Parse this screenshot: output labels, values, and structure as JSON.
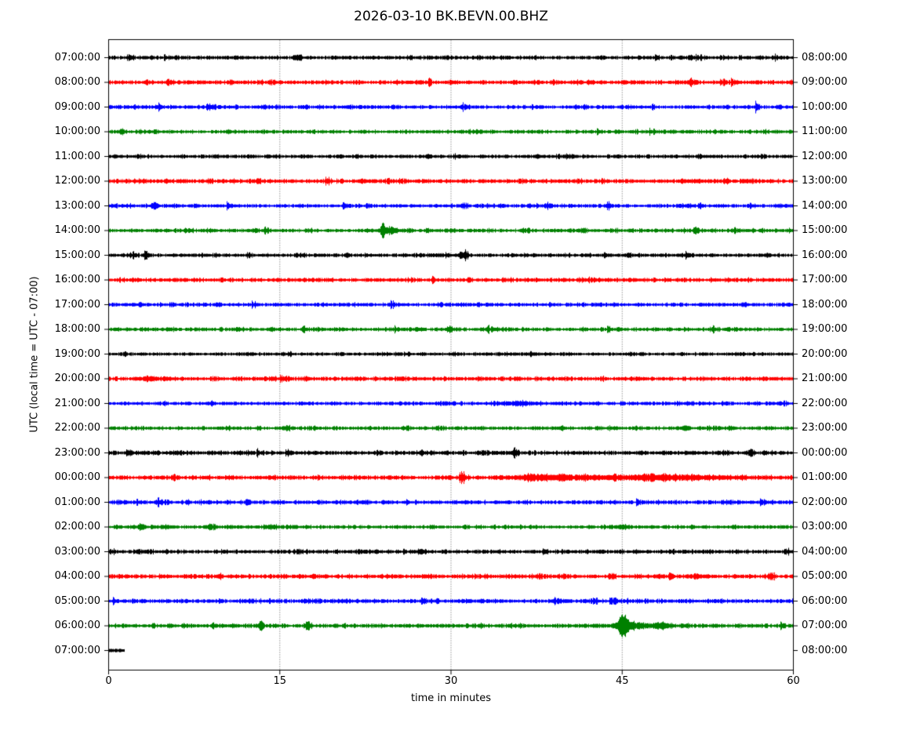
{
  "title": "2026-03-10 BK.BEVN.00.BHZ",
  "chart_data": {
    "type": "line",
    "subtype": "seismogram-helicorder-dayplot",
    "title": "2026-03-10 BK.BEVN.00.BHZ",
    "xlabel": "time in minutes",
    "ylabel": "UTC (local time = UTC - 07:00)",
    "xlim": [
      0,
      60
    ],
    "x_ticks": [
      0,
      15,
      30,
      45,
      60
    ],
    "grid": {
      "style": "dotted-vertical",
      "at_minutes": [
        15,
        30,
        45
      ]
    },
    "legend": "none",
    "colors_cycle": [
      "#000000",
      "#ff0000",
      "#0000ff",
      "#008000"
    ],
    "minutes_per_row": 60,
    "rows": [
      {
        "left": "07:00:00",
        "right": "08:00:00",
        "color": "#000000",
        "amp": 1.0,
        "events": []
      },
      {
        "left": "08:00:00",
        "right": "09:00:00",
        "color": "#ff0000",
        "amp": 1.1,
        "events": []
      },
      {
        "left": "09:00:00",
        "right": "10:00:00",
        "color": "#0000ff",
        "amp": 1.0,
        "events": []
      },
      {
        "left": "10:00:00",
        "right": "11:00:00",
        "color": "#008000",
        "amp": 1.0,
        "events": []
      },
      {
        "left": "11:00:00",
        "right": "12:00:00",
        "color": "#000000",
        "amp": 1.0,
        "events": []
      },
      {
        "left": "12:00:00",
        "right": "13:00:00",
        "color": "#ff0000",
        "amp": 1.15,
        "events": []
      },
      {
        "left": "13:00:00",
        "right": "14:00:00",
        "color": "#0000ff",
        "amp": 1.0,
        "events": [
          {
            "m": 4,
            "a": 2.5,
            "w": 0.25
          }
        ]
      },
      {
        "left": "14:00:00",
        "right": "15:00:00",
        "color": "#008000",
        "amp": 1.0,
        "events": [
          {
            "m": 24,
            "a": 7.5,
            "w": 0.12
          },
          {
            "m": 24.5,
            "a": 1.5,
            "w": 0.7
          }
        ]
      },
      {
        "left": "15:00:00",
        "right": "16:00:00",
        "color": "#000000",
        "amp": 1.0,
        "events": []
      },
      {
        "left": "16:00:00",
        "right": "17:00:00",
        "color": "#ff0000",
        "amp": 1.1,
        "events": []
      },
      {
        "left": "17:00:00",
        "right": "18:00:00",
        "color": "#0000ff",
        "amp": 1.0,
        "events": []
      },
      {
        "left": "18:00:00",
        "right": "19:00:00",
        "color": "#008000",
        "amp": 1.0,
        "events": []
      },
      {
        "left": "19:00:00",
        "right": "20:00:00",
        "color": "#000000",
        "amp": 0.9,
        "events": []
      },
      {
        "left": "20:00:00",
        "right": "21:00:00",
        "color": "#ff0000",
        "amp": 1.1,
        "events": [
          {
            "m": 3.5,
            "a": 1.5,
            "w": 0.5
          }
        ]
      },
      {
        "left": "21:00:00",
        "right": "22:00:00",
        "color": "#0000ff",
        "amp": 1.0,
        "events": [
          {
            "m": 36,
            "a": 1.2,
            "w": 0.8
          }
        ]
      },
      {
        "left": "22:00:00",
        "right": "23:00:00",
        "color": "#008000",
        "amp": 1.0,
        "events": [
          {
            "m": 50.5,
            "a": 1.8,
            "w": 0.25
          }
        ]
      },
      {
        "left": "23:00:00",
        "right": "00:00:00",
        "color": "#000000",
        "amp": 1.15,
        "events": []
      },
      {
        "left": "00:00:00",
        "right": "01:00:00",
        "color": "#ff0000",
        "amp": 1.1,
        "events": [
          {
            "m": 38,
            "a": 1.2,
            "w": 2
          },
          {
            "m": 47,
            "a": 1.5,
            "w": 6
          }
        ]
      },
      {
        "left": "01:00:00",
        "right": "02:00:00",
        "color": "#0000ff",
        "amp": 1.05,
        "events": []
      },
      {
        "left": "02:00:00",
        "right": "03:00:00",
        "color": "#008000",
        "amp": 1.0,
        "events": [
          {
            "m": 5,
            "a": 1.2,
            "w": 0.4
          },
          {
            "m": 14,
            "a": 1.2,
            "w": 0.4
          },
          {
            "m": 45,
            "a": 1.4,
            "w": 0.4
          }
        ]
      },
      {
        "left": "03:00:00",
        "right": "04:00:00",
        "color": "#000000",
        "amp": 1.05,
        "events": []
      },
      {
        "left": "04:00:00",
        "right": "05:00:00",
        "color": "#ff0000",
        "amp": 1.15,
        "events": []
      },
      {
        "left": "05:00:00",
        "right": "06:00:00",
        "color": "#0000ff",
        "amp": 1.1,
        "events": []
      },
      {
        "left": "06:00:00",
        "right": "07:00:00",
        "color": "#008000",
        "amp": 1.05,
        "events": [
          {
            "m": 13.3,
            "a": 4.5,
            "w": 0.15
          },
          {
            "m": 45,
            "a": 9.5,
            "w": 0.3
          },
          {
            "m": 46,
            "a": 2.2,
            "w": 1.2
          },
          {
            "m": 48.5,
            "a": 1.8,
            "w": 0.5
          }
        ]
      },
      {
        "left": "07:00:00",
        "right": "08:00:00",
        "color": "#000000",
        "amp": 1.2,
        "coverage": 0.023,
        "events": []
      }
    ]
  }
}
